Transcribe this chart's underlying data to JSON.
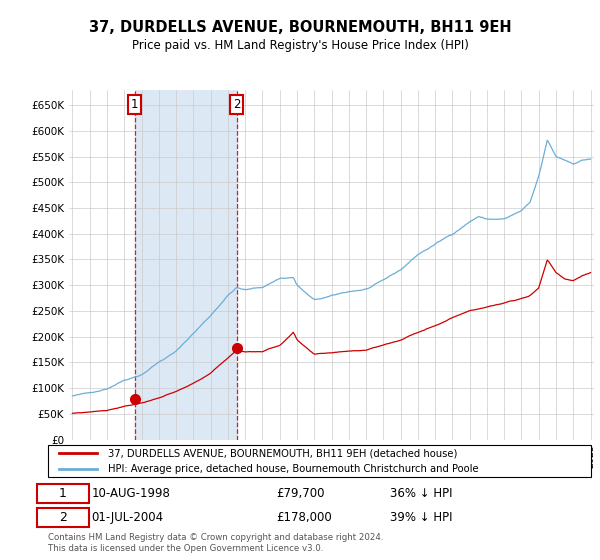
{
  "title": "37, DURDELLS AVENUE, BOURNEMOUTH, BH11 9EH",
  "subtitle": "Price paid vs. HM Land Registry's House Price Index (HPI)",
  "legend_line1": "37, DURDELLS AVENUE, BOURNEMOUTH, BH11 9EH (detached house)",
  "legend_line2": "HPI: Average price, detached house, Bournemouth Christchurch and Poole",
  "transaction1_date": "10-AUG-1998",
  "transaction1_price": 79700,
  "transaction1_price_str": "£79,700",
  "transaction1_pct": "36% ↓ HPI",
  "transaction2_date": "01-JUL-2004",
  "transaction2_price": 178000,
  "transaction2_price_str": "£178,000",
  "transaction2_pct": "39% ↓ HPI",
  "footer": "Contains HM Land Registry data © Crown copyright and database right 2024.\nThis data is licensed under the Open Government Licence v3.0.",
  "hpi_color": "#6baed6",
  "price_color": "#cc0000",
  "background_color": "#ffffff",
  "grid_color": "#cccccc",
  "shade_color": "#dce9f5",
  "ylim": [
    0,
    680000
  ],
  "yticks": [
    0,
    50000,
    100000,
    150000,
    200000,
    250000,
    300000,
    350000,
    400000,
    450000,
    500000,
    550000,
    600000,
    650000
  ],
  "year_start": 1995,
  "year_end": 2025,
  "transaction1_year": 1998.61,
  "transaction2_year": 2004.5
}
